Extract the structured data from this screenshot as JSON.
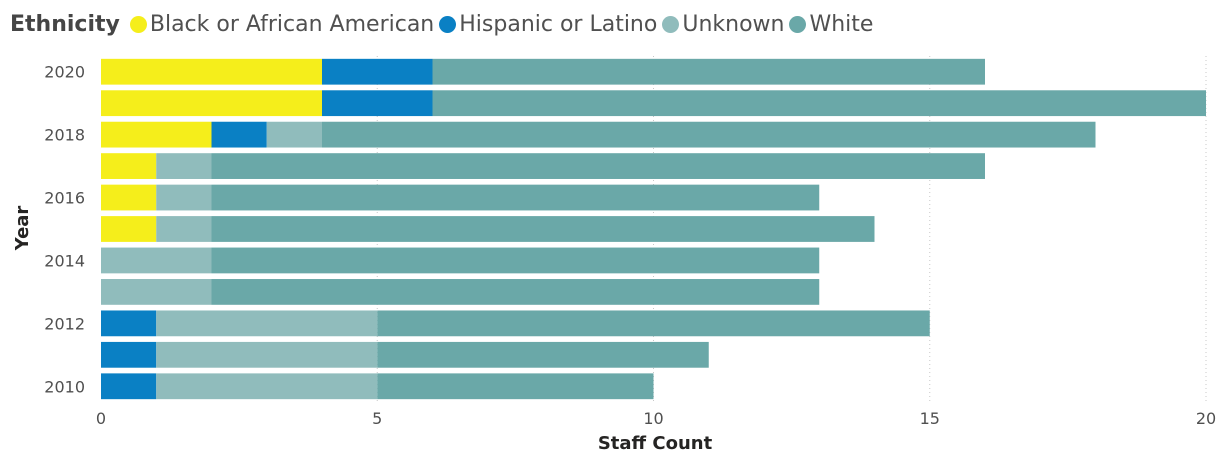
{
  "legend": {
    "title": "Ethnicity",
    "items": [
      {
        "label": "Black or African American",
        "color": "#F5EE1B"
      },
      {
        "label": "Hispanic or Latino",
        "color": "#0A80C4"
      },
      {
        "label": "Unknown",
        "color": "#90BCBC"
      },
      {
        "label": "White",
        "color": "#6AA8A8"
      }
    ]
  },
  "chart_data": {
    "type": "bar",
    "orientation": "horizontal",
    "stacked": true,
    "categories": [
      "2020",
      "2019",
      "2018",
      "2017",
      "2016",
      "2015",
      "2014",
      "2013",
      "2012",
      "2011",
      "2010"
    ],
    "category_tick_labels": [
      "2020",
      "",
      "2018",
      "",
      "2016",
      "",
      "2014",
      "",
      "2012",
      "",
      "2010"
    ],
    "series": [
      {
        "name": "Black or African American",
        "color": "#F5EE1B",
        "values": [
          4,
          4,
          2,
          1,
          1,
          1,
          0,
          0,
          0,
          0,
          0
        ]
      },
      {
        "name": "Hispanic or Latino",
        "color": "#0A80C4",
        "values": [
          2,
          2,
          1,
          0,
          0,
          0,
          0,
          0,
          1,
          1,
          1
        ]
      },
      {
        "name": "Unknown",
        "color": "#90BCBC",
        "values": [
          0,
          0,
          1,
          1,
          1,
          1,
          2,
          2,
          4,
          4,
          4
        ]
      },
      {
        "name": "White",
        "color": "#6AA8A8",
        "values": [
          10,
          14,
          14,
          14,
          11,
          12,
          11,
          11,
          10,
          6,
          5
        ]
      }
    ],
    "xlabel": "Staff Count",
    "ylabel": "Year",
    "xlim": [
      0,
      20
    ],
    "xticks": [
      0,
      5,
      10,
      15,
      20
    ],
    "grid": "vertical dotted",
    "legend_position": "top-left"
  }
}
